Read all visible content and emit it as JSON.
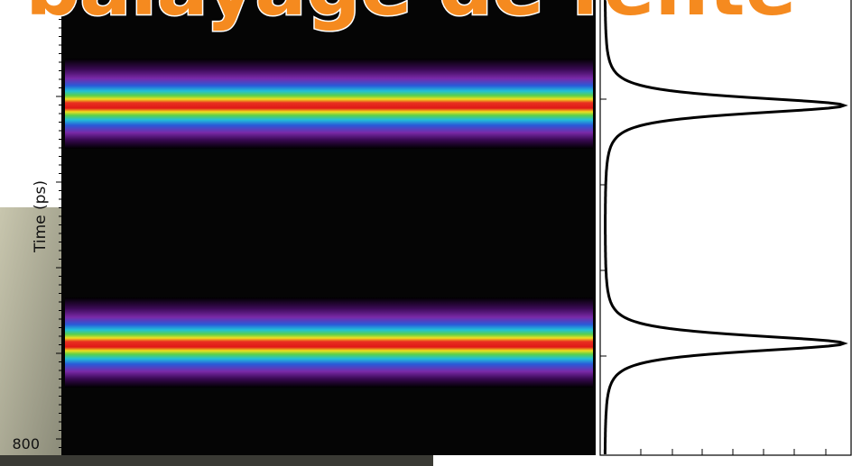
{
  "slide": {
    "title": "r balayage de fente",
    "image": {
      "y_axis_label": "Time (ps)",
      "y_tick_label": "800"
    }
  }
}
